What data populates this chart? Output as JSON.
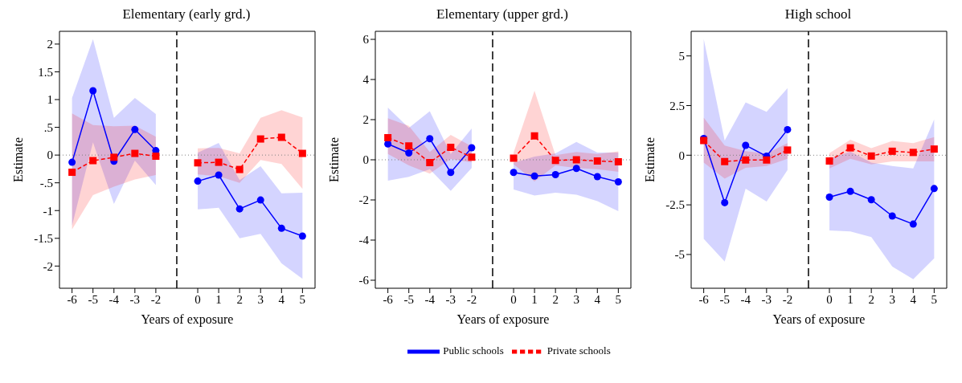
{
  "chart_data": [
    {
      "type": "line",
      "title": "Elementary (early grd.)",
      "xlabel": "Years of exposure",
      "ylabel": "Estimate",
      "x": [
        -6,
        -5,
        -4,
        -3,
        -2,
        0,
        1,
        2,
        3,
        4,
        5
      ],
      "xlim": [
        -6.6,
        5.6
      ],
      "xticks": [
        -6,
        -5,
        -4,
        -3,
        -2,
        0,
        1,
        2,
        3,
        4,
        5
      ],
      "ylim": [
        -2.4,
        2.23
      ],
      "yticks": [
        -2,
        -1.5,
        -1,
        {
          "value": -0.5,
          "label": "-.5"
        },
        0,
        {
          "value": 0.5,
          "label": ".5"
        },
        1,
        1.5,
        2
      ],
      "ref_lines": [
        {
          "axis": "x",
          "value": -1,
          "line_style": "dashed",
          "color": "#000000"
        },
        {
          "axis": "y",
          "value": 0,
          "line_style": "dotted",
          "color": "#808080"
        }
      ],
      "series": [
        {
          "color": "#0000ff",
          "marker": "circle",
          "line_style": "solid",
          "values": [
            -0.13,
            1.16,
            -0.11,
            0.46,
            0.08,
            -0.47,
            -0.36,
            -0.97,
            -0.81,
            -1.32,
            -1.46
          ],
          "lower": [
            -1.27,
            0.23,
            -0.88,
            -0.1,
            -0.54,
            -0.98,
            -0.95,
            -1.5,
            -1.42,
            -1.95,
            -2.23
          ],
          "upper": [
            1.03,
            2.09,
            0.67,
            1.03,
            0.74,
            0.04,
            0.22,
            -0.45,
            -0.2,
            -0.69,
            -0.68
          ]
        },
        {
          "color": "#ff0000",
          "marker": "square",
          "line_style": "dashed",
          "values": [
            -0.31,
            -0.1,
            -0.04,
            0.03,
            -0.02,
            -0.14,
            -0.13,
            -0.26,
            0.29,
            0.32,
            0.03
          ],
          "lower": [
            -1.34,
            -0.72,
            -0.57,
            -0.44,
            -0.36,
            -0.35,
            -0.38,
            -0.5,
            -0.09,
            -0.16,
            -0.61
          ],
          "upper": [
            0.75,
            0.54,
            0.52,
            0.53,
            0.33,
            0.12,
            0.13,
            0.03,
            0.67,
            0.81,
            0.68
          ]
        }
      ]
    },
    {
      "type": "line",
      "title": "Elementary (upper grd.)",
      "xlabel": "Years of exposure",
      "ylabel": "Estimate",
      "x": [
        -6,
        -5,
        -4,
        -3,
        -2,
        0,
        1,
        2,
        3,
        4,
        5
      ],
      "xlim": [
        -6.6,
        5.6
      ],
      "xticks": [
        -6,
        -5,
        -4,
        -3,
        -2,
        0,
        1,
        2,
        3,
        4,
        5
      ],
      "ylim": [
        -6.4,
        6.4
      ],
      "yticks": [
        -6,
        -4,
        -2,
        0,
        2,
        4,
        6
      ],
      "legend": "bottom",
      "ref_lines": [
        {
          "axis": "x",
          "value": -1,
          "line_style": "dashed",
          "color": "#000000"
        },
        {
          "axis": "y",
          "value": 0,
          "line_style": "dotted",
          "color": "#808080"
        }
      ],
      "series": [
        {
          "name": "Public schools",
          "color": "#0000ff",
          "marker": "circle",
          "line_style": "solid",
          "values": [
            0.79,
            0.34,
            1.05,
            -0.63,
            0.6,
            -0.63,
            -0.81,
            -0.74,
            -0.43,
            -0.84,
            -1.1
          ],
          "lower": [
            -1.04,
            -0.85,
            -0.47,
            -1.55,
            -0.41,
            -1.48,
            -1.78,
            -1.64,
            -1.74,
            -2.06,
            -2.56
          ],
          "upper": [
            2.6,
            1.59,
            2.42,
            0.29,
            1.56,
            -0.15,
            0.16,
            0.32,
            0.89,
            0.36,
            0.36
          ]
        },
        {
          "name": "Private schools",
          "color": "#ff0000",
          "marker": "square",
          "line_style": "dashed",
          "values": [
            1.1,
            0.69,
            -0.14,
            0.62,
            0.13,
            0.08,
            1.19,
            -0.03,
            0.0,
            -0.06,
            -0.1
          ],
          "lower": [
            0.29,
            -0.28,
            -0.69,
            0.04,
            -0.13,
            -0.22,
            -1.08,
            -0.28,
            -0.41,
            -0.47,
            -0.6
          ],
          "upper": [
            2.07,
            1.69,
            0.39,
            1.24,
            0.67,
            0.36,
            3.44,
            0.23,
            0.39,
            0.29,
            0.42
          ]
        }
      ]
    },
    {
      "type": "line",
      "title": "High school",
      "xlabel": "Years of exposure",
      "ylabel": "Estimate",
      "x": [
        -6,
        -5,
        -4,
        -3,
        -2,
        0,
        1,
        2,
        3,
        4,
        5
      ],
      "xlim": [
        -6.6,
        5.6
      ],
      "xticks": [
        -6,
        -5,
        -4,
        -3,
        -2,
        0,
        1,
        2,
        3,
        4,
        5
      ],
      "ylim": [
        -6.7,
        6.24
      ],
      "yticks": [
        -5,
        -2.5,
        0,
        2.5,
        5
      ],
      "ref_lines": [
        {
          "axis": "x",
          "value": -1,
          "line_style": "dashed",
          "color": "#000000"
        },
        {
          "axis": "y",
          "value": 0,
          "line_style": "dotted",
          "color": "#808080"
        }
      ],
      "series": [
        {
          "color": "#0000ff",
          "marker": "circle",
          "line_style": "solid",
          "values": [
            0.84,
            -2.39,
            0.5,
            -0.05,
            1.29,
            -2.11,
            -1.82,
            -2.24,
            -3.06,
            -3.47,
            -1.68
          ],
          "lower": [
            -4.21,
            -5.36,
            -1.69,
            -2.33,
            -0.75,
            -3.79,
            -3.84,
            -4.12,
            -5.61,
            -6.25,
            -5.19
          ],
          "upper": [
            5.86,
            0.74,
            2.66,
            2.19,
            3.38,
            -0.18,
            0.18,
            -0.37,
            -0.54,
            -0.66,
            1.8
          ]
        },
        {
          "color": "#ff0000",
          "marker": "square",
          "line_style": "dashed",
          "values": [
            0.74,
            -0.32,
            -0.24,
            -0.24,
            0.26,
            -0.29,
            0.37,
            -0.04,
            0.2,
            0.14,
            0.31
          ],
          "lower": [
            -0.37,
            -1.18,
            -0.63,
            -0.54,
            -0.18,
            -0.66,
            -0.18,
            -0.46,
            -0.31,
            -0.31,
            -0.31
          ],
          "upper": [
            1.89,
            0.49,
            0.2,
            0.08,
            0.61,
            0.1,
            0.78,
            0.36,
            0.72,
            0.61,
            0.91
          ]
        }
      ]
    }
  ]
}
